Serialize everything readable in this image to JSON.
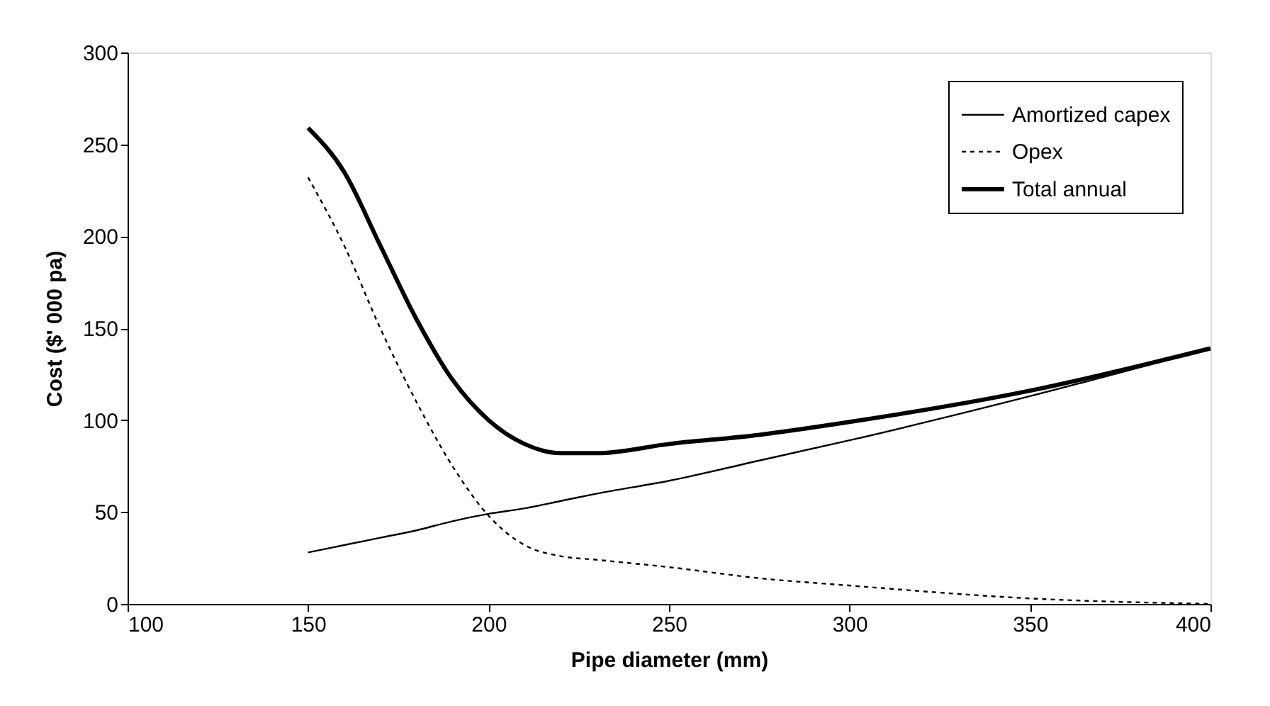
{
  "chart_data": {
    "type": "line",
    "xlabel": "Pipe diameter (mm)",
    "ylabel": "Cost ($' 000 pa)",
    "x": [
      150,
      160,
      170,
      180,
      190,
      200,
      210,
      220,
      230,
      250,
      275,
      300,
      350,
      400
    ],
    "series": [
      {
        "name": "Amortized capex",
        "color": "#000000",
        "line_style": "solid",
        "values": [
          28,
          32,
          36,
          40,
          45,
          49,
          52,
          56,
          60,
          67,
          78,
          89,
          113,
          139
        ]
      },
      {
        "name": "Opex",
        "color": "#000000",
        "line_style": "dotted",
        "values": [
          232,
          195,
          150,
          110,
          75,
          48,
          32,
          26,
          24,
          20,
          14,
          10,
          3,
          0
        ]
      },
      {
        "name": "Total annual",
        "color": "#000000",
        "line_style": "solid",
        "values": [
          259,
          235,
          195,
          155,
          122,
          100,
          87,
          82,
          82,
          87,
          92,
          99,
          116,
          139
        ]
      }
    ],
    "xlim": [
      100,
      400
    ],
    "ylim": [
      0,
      300
    ],
    "xticks": [
      100,
      150,
      200,
      250,
      300,
      350,
      400
    ],
    "yticks": [
      0,
      50,
      100,
      150,
      200,
      250,
      300
    ],
    "grid": false,
    "legend": "top right",
    "marker": "none"
  }
}
